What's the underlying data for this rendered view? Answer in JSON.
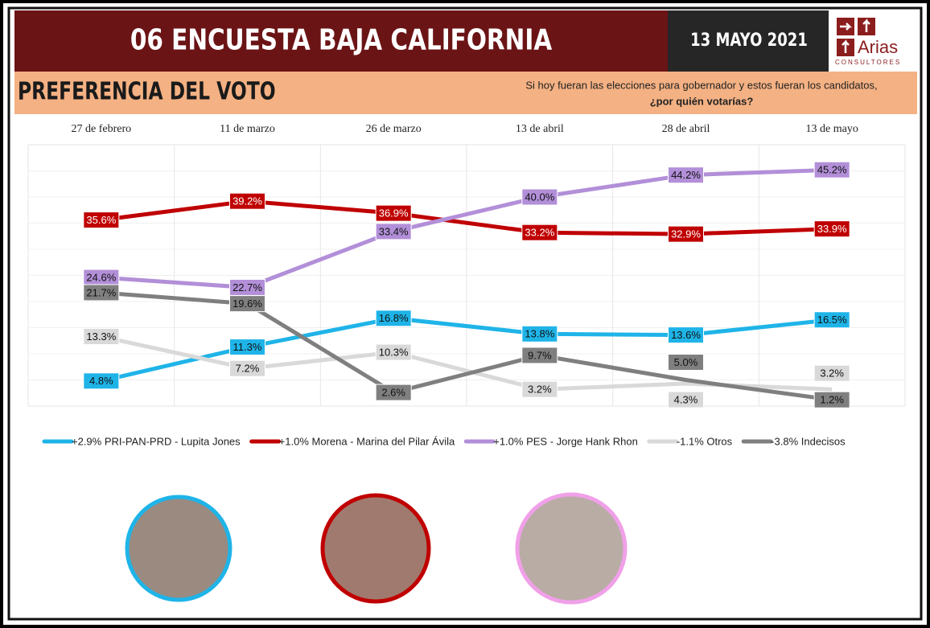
{
  "header": {
    "title": "06 ENCUESTA BAJA CALIFORNIA",
    "date": "13 MAYO 2021",
    "logo_name": "Arias",
    "logo_sub": "CONSULTORES"
  },
  "subtitle": {
    "title": "PREFERENCIA DEL VOTO",
    "question_line1": "Si hoy fueran las elecciones para gobernador y estos fueran los candidatos,",
    "question_line2": "¿por quién votarías?"
  },
  "chart_data": {
    "type": "line",
    "categories": [
      "27 de febrero",
      "11 de marzo",
      "26 de marzo",
      "13 de abril",
      "28 de abril",
      "13 de mayo"
    ],
    "ylim": [
      0,
      50
    ],
    "series": [
      {
        "name": "+2.9% PRI-PAN-PRD - Lupita Jones",
        "color": "#1fb4e8",
        "values": [
          4.8,
          11.3,
          16.8,
          13.8,
          13.6,
          16.5
        ],
        "value_labels": [
          "4.8%",
          "11.3%",
          "16.8%",
          "13.8%",
          "13.6%",
          "16.5%"
        ]
      },
      {
        "name": "+1.0% Morena - Marina del Pilar Ávila",
        "color": "#c00000",
        "values": [
          35.6,
          39.2,
          36.9,
          33.2,
          32.9,
          33.9
        ],
        "value_labels": [
          "35.6%",
          "39.2%",
          "36.9%",
          "33.2%",
          "32.9%",
          "33.9%"
        ]
      },
      {
        "name": "+1.0% PES - Jorge Hank Rhon",
        "color": "#b28fd8",
        "values": [
          24.6,
          22.7,
          33.4,
          40.0,
          44.2,
          45.2
        ],
        "value_labels": [
          "24.6%",
          "22.7%",
          "33.4%",
          "40.0%",
          "44.2%",
          "45.2%"
        ]
      },
      {
        "name": "-1.1% Otros",
        "color": "#d9d9d9",
        "values": [
          13.3,
          7.2,
          10.3,
          3.2,
          4.3,
          3.2
        ],
        "value_labels": [
          "13.3%",
          "7.2%",
          "10.3%",
          "3.2%",
          "4.3%",
          "3.2%"
        ]
      },
      {
        "name": "-3.8% Indecisos",
        "color": "#7f7f7f",
        "values": [
          21.7,
          19.6,
          2.6,
          9.7,
          5.0,
          1.2
        ],
        "value_labels": [
          "21.7%",
          "19.6%",
          "2.6%",
          "9.7%",
          "5.0%",
          "1.2%"
        ]
      }
    ]
  }
}
